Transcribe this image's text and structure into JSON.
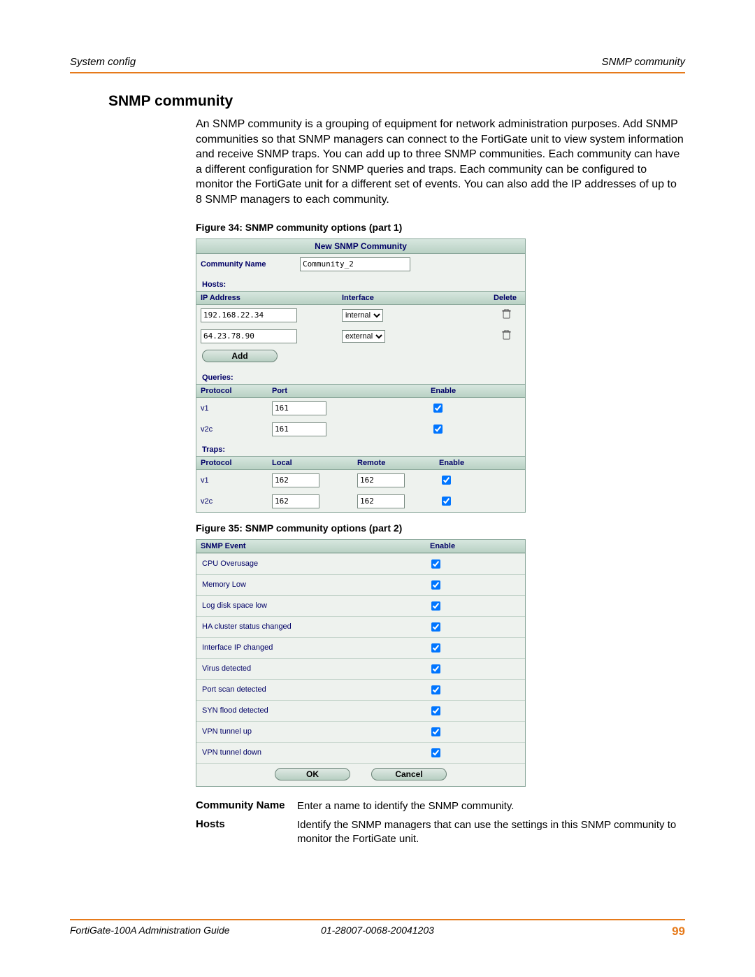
{
  "header": {
    "left": "System config",
    "right": "SNMP community"
  },
  "title": "SNMP community",
  "intro": "An SNMP community is a grouping of equipment for network administration purposes. Add SNMP communities so that SNMP managers can connect to the FortiGate unit to view system information and receive SNMP traps. You can add up to three SNMP communities. Each community can have a different configuration for SNMP queries and traps. Each community can be configured to monitor the FortiGate unit for a different set of events. You can also add the IP addresses of up to 8 SNMP managers to each community.",
  "fig1_caption": "Figure 34: SNMP community options (part 1)",
  "fig2_caption": "Figure 35: SNMP community options (part 2)",
  "panel1": {
    "title": "New SNMP Community",
    "community_name_label": "Community Name",
    "community_name_value": "Community_2",
    "hosts_label": "Hosts:",
    "hosts_headers": {
      "ip": "IP Address",
      "iface": "Interface",
      "del": "Delete"
    },
    "hosts": [
      {
        "ip": "192.168.22.34",
        "iface": "internal"
      },
      {
        "ip": "64.23.78.90",
        "iface": "external"
      }
    ],
    "add_label": "Add",
    "queries_label": "Queries:",
    "queries_headers": {
      "proto": "Protocol",
      "port": "Port",
      "enable": "Enable"
    },
    "queries": [
      {
        "proto": "v1",
        "port": "161",
        "enable": true
      },
      {
        "proto": "v2c",
        "port": "161",
        "enable": true
      }
    ],
    "traps_label": "Traps:",
    "traps_headers": {
      "proto": "Protocol",
      "local": "Local",
      "remote": "Remote",
      "enable": "Enable"
    },
    "traps": [
      {
        "proto": "v1",
        "local": "162",
        "remote": "162",
        "enable": true
      },
      {
        "proto": "v2c",
        "local": "162",
        "remote": "162",
        "enable": true
      }
    ]
  },
  "panel2": {
    "headers": {
      "event": "SNMP Event",
      "enable": "Enable"
    },
    "events": [
      "CPU Overusage",
      "Memory Low",
      "Log disk space low",
      "HA cluster status changed",
      "Interface IP changed",
      "Virus detected",
      "Port scan detected",
      "SYN flood detected",
      "VPN tunnel up",
      "VPN tunnel down"
    ],
    "ok": "OK",
    "cancel": "Cancel"
  },
  "defs": [
    {
      "term": "Community Name",
      "desc": "Enter a name to identify the SNMP community."
    },
    {
      "term": "Hosts",
      "desc": "Identify the SNMP managers that can use the settings in this SNMP community to monitor the FortiGate unit."
    }
  ],
  "footer": {
    "left": "FortiGate-100A Administration Guide",
    "mid": "01-28007-0068-20041203",
    "page": "99"
  },
  "colors": {
    "rule": "#e67a1a",
    "accent_text": "#000066",
    "panel_bg": "#eef2ee",
    "panel_border": "#8aa79a"
  }
}
